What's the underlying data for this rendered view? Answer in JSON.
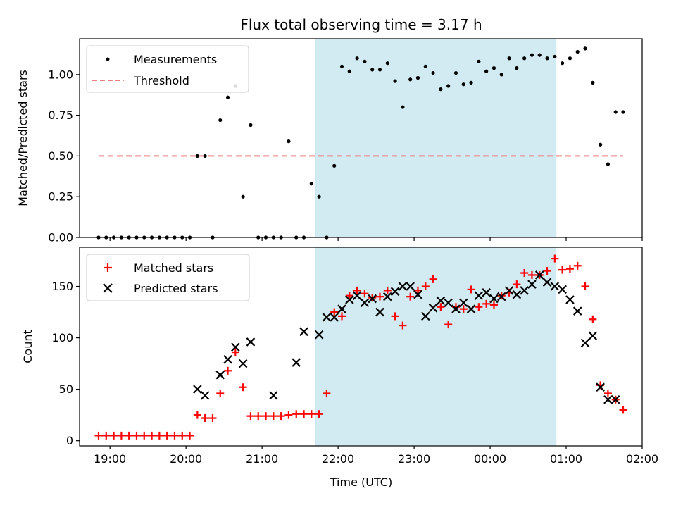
{
  "chart_data": [
    {
      "type": "scatter",
      "title": "Flux total observing time = 3.17 h",
      "xlabel": "",
      "ylabel": "Matched/Predicted stars",
      "ylim": [
        0,
        1.22
      ],
      "yticks": [
        0.0,
        0.25,
        0.5,
        0.75,
        1.0
      ],
      "ytick_labels": [
        "0.00",
        "0.25",
        "0.50",
        "0.75",
        "1.00"
      ],
      "legend_position": "top-left",
      "shaded_region": {
        "from": "21:42",
        "to": "00:52",
        "color": "#add8e6"
      },
      "series": [
        {
          "name": "Measurements",
          "marker": "dot",
          "color": "#000000",
          "x": [
            "18:51",
            "18:57",
            "19:03",
            "19:09",
            "19:15",
            "19:21",
            "19:27",
            "19:33",
            "19:39",
            "19:45",
            "19:51",
            "19:57",
            "20:03",
            "20:09",
            "20:15",
            "20:21",
            "20:27",
            "20:33",
            "20:39",
            "20:45",
            "20:51",
            "20:57",
            "21:03",
            "21:09",
            "21:15",
            "21:21",
            "21:27",
            "21:33",
            "21:39",
            "21:45",
            "21:51",
            "21:57",
            "22:03",
            "22:09",
            "22:15",
            "22:21",
            "22:27",
            "22:33",
            "22:39",
            "22:45",
            "22:51",
            "22:57",
            "23:03",
            "23:09",
            "23:15",
            "23:21",
            "23:27",
            "23:33",
            "23:39",
            "23:45",
            "23:51",
            "23:57",
            "00:03",
            "00:09",
            "00:15",
            "00:21",
            "00:27",
            "00:33",
            "00:39",
            "00:45",
            "00:51",
            "00:57",
            "01:03",
            "01:09",
            "01:15",
            "01:21",
            "01:27",
            "01:33",
            "01:39",
            "01:45"
          ],
          "values": [
            0,
            0,
            0,
            0,
            0,
            0,
            0,
            0,
            0,
            0,
            0,
            0,
            0,
            0.5,
            0.5,
            0,
            0.72,
            0.86,
            0.93,
            0.25,
            0.69,
            0,
            0,
            0,
            0,
            0.59,
            0,
            0,
            0.33,
            0.25,
            0,
            0.44,
            1.05,
            1.02,
            1.1,
            1.08,
            1.03,
            1.03,
            1.07,
            0.96,
            0.8,
            0.97,
            0.98,
            1.05,
            1.01,
            0.91,
            0.93,
            1.01,
            0.94,
            0.95,
            1.08,
            1.02,
            1.04,
            1.0,
            1.1,
            1.04,
            1.1,
            1.12,
            1.12,
            1.1,
            1.11,
            1.07,
            1.1,
            1.14,
            1.16,
            0.95,
            0.57,
            0.45,
            0.77,
            0.77
          ]
        },
        {
          "name": "Threshold",
          "marker": "dashed-line",
          "color": "#f08080",
          "x": [
            "18:51",
            "01:45"
          ],
          "values": [
            0.5,
            0.5
          ]
        }
      ]
    },
    {
      "type": "scatter",
      "title": "",
      "xlabel": "Time (UTC)",
      "ylabel": "Count",
      "ylim": [
        -5,
        188
      ],
      "yticks": [
        0,
        50,
        100,
        150
      ],
      "ytick_labels": [
        "0",
        "50",
        "100",
        "150"
      ],
      "xrange": [
        "18:36",
        "02:00"
      ],
      "xticks": [
        "19:00",
        "20:00",
        "21:00",
        "22:00",
        "23:00",
        "00:00",
        "01:00",
        "02:00"
      ],
      "legend_position": "top-left",
      "shaded_region": {
        "from": "21:42",
        "to": "00:52",
        "color": "#add8e6"
      },
      "series": [
        {
          "name": "Matched stars",
          "marker": "plus",
          "color": "#ff0000",
          "x": [
            "18:51",
            "18:57",
            "19:03",
            "19:09",
            "19:15",
            "19:21",
            "19:27",
            "19:33",
            "19:39",
            "19:45",
            "19:51",
            "19:57",
            "20:03",
            "20:09",
            "20:15",
            "20:21",
            "20:27",
            "20:33",
            "20:39",
            "20:45",
            "20:51",
            "20:57",
            "21:03",
            "21:09",
            "21:15",
            "21:21",
            "21:27",
            "21:33",
            "21:39",
            "21:45",
            "21:51",
            "21:57",
            "22:03",
            "22:09",
            "22:15",
            "22:21",
            "22:27",
            "22:33",
            "22:39",
            "22:45",
            "22:51",
            "22:57",
            "23:03",
            "23:09",
            "23:15",
            "23:21",
            "23:27",
            "23:33",
            "23:39",
            "23:45",
            "23:51",
            "23:57",
            "00:03",
            "00:09",
            "00:15",
            "00:21",
            "00:27",
            "00:33",
            "00:39",
            "00:45",
            "00:51",
            "00:57",
            "01:03",
            "01:09",
            "01:15",
            "01:21",
            "01:27",
            "01:33",
            "01:39",
            "01:45"
          ],
          "values": [
            5,
            5,
            5,
            5,
            5,
            5,
            5,
            5,
            5,
            5,
            5,
            5,
            5,
            25,
            22,
            22,
            46,
            68,
            86,
            52,
            24,
            24,
            24,
            24,
            24,
            25,
            26,
            26,
            26,
            26,
            46,
            125,
            121,
            141,
            146,
            143,
            139,
            140,
            146,
            121,
            112,
            140,
            146,
            150,
            157,
            130,
            113,
            130,
            128,
            147,
            130,
            133,
            132,
            141,
            144,
            152,
            163,
            161,
            161,
            165,
            177,
            166,
            167,
            170,
            150,
            118,
            54,
            46,
            40,
            30
          ]
        },
        {
          "name": "Predicted stars",
          "marker": "x",
          "color": "#000000",
          "x": [
            "20:09",
            "20:15",
            "20:27",
            "20:33",
            "20:39",
            "20:45",
            "20:51",
            "21:09",
            "21:27",
            "21:33",
            "21:45",
            "21:51",
            "21:57",
            "22:03",
            "22:09",
            "22:15",
            "22:21",
            "22:27",
            "22:33",
            "22:39",
            "22:45",
            "22:51",
            "22:57",
            "23:03",
            "23:09",
            "23:15",
            "23:21",
            "23:27",
            "23:33",
            "23:39",
            "23:45",
            "23:51",
            "23:57",
            "00:03",
            "00:09",
            "00:15",
            "00:21",
            "00:27",
            "00:33",
            "00:39",
            "00:45",
            "00:51",
            "00:57",
            "01:03",
            "01:09",
            "01:15",
            "01:21",
            "01:27",
            "01:33",
            "01:39"
          ],
          "values": [
            50,
            44,
            64,
            79,
            91,
            75,
            96,
            44,
            76,
            106,
            103,
            120,
            120,
            128,
            137,
            141,
            134,
            138,
            125,
            140,
            145,
            150,
            150,
            142,
            121,
            129,
            136,
            134,
            128,
            134,
            128,
            141,
            144,
            138,
            140,
            146,
            142,
            146,
            152,
            161,
            154,
            150,
            147,
            137,
            126,
            95,
            102,
            52,
            40,
            40
          ]
        }
      ]
    }
  ]
}
